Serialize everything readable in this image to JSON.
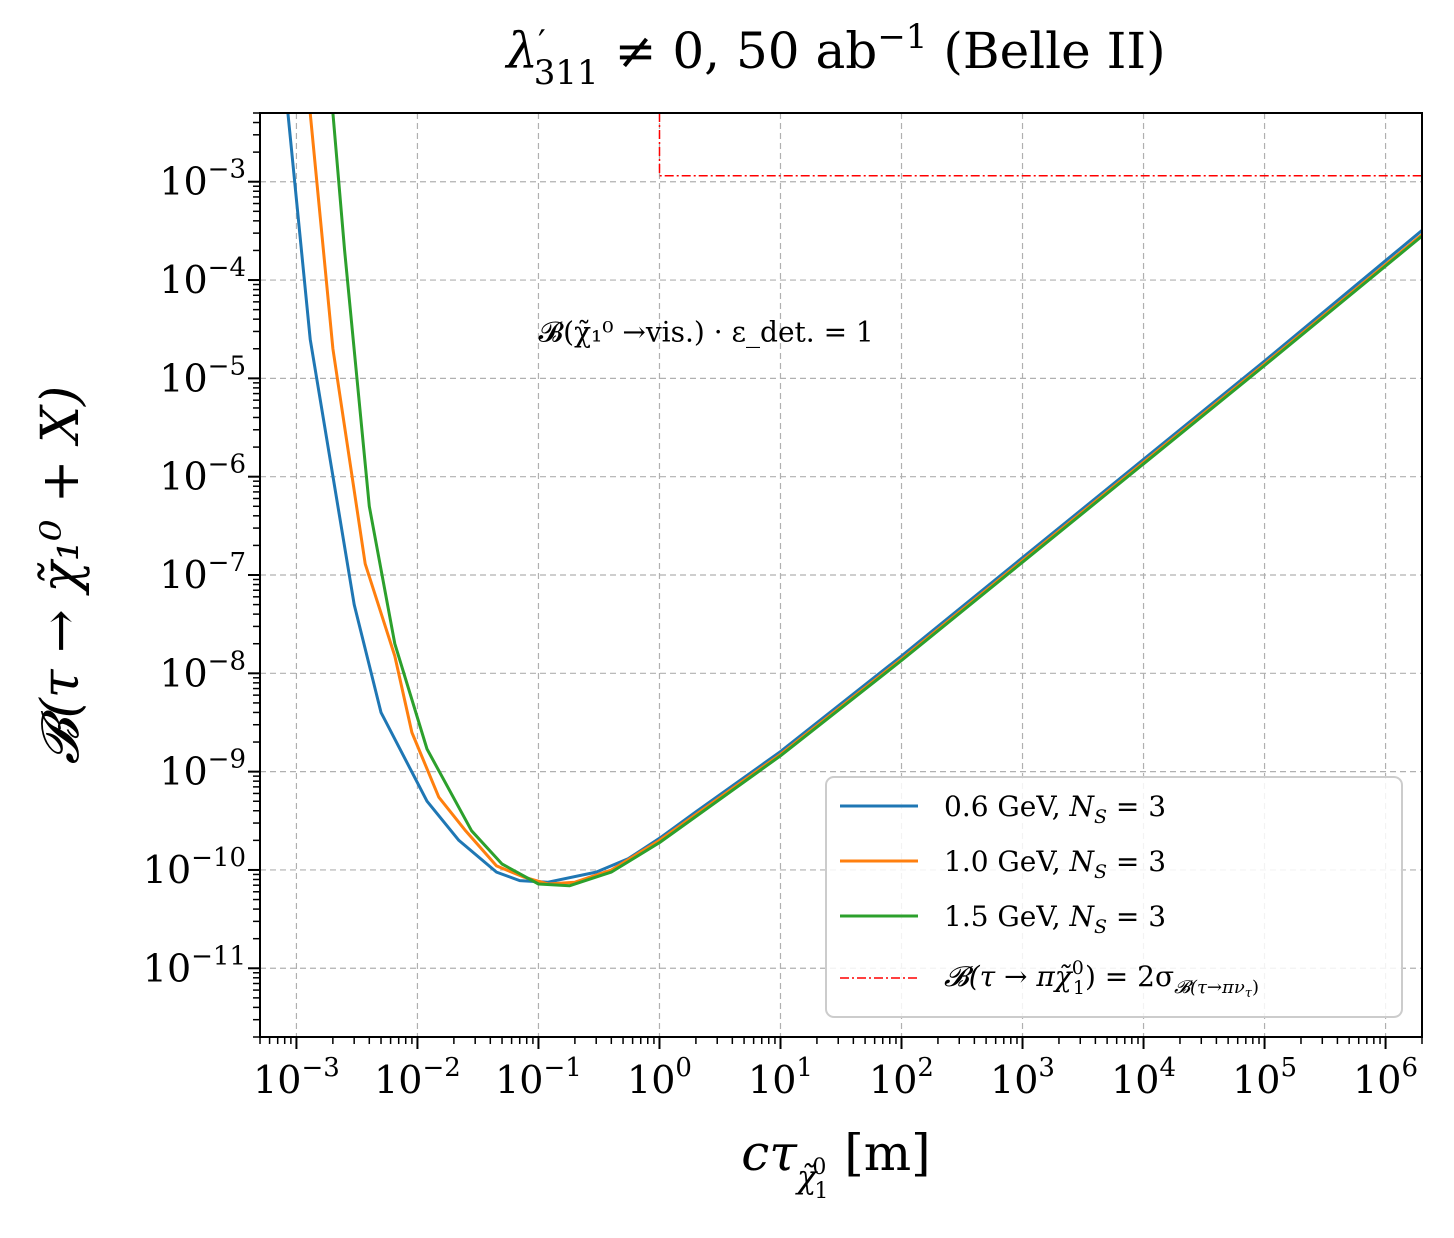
{
  "chart_data": {
    "type": "line",
    "title": "λ′₃₁₁ ≠ 0, 50 ab⁻¹ (Belle II)",
    "title_parts": {
      "lambda": "λ",
      "prime": "′",
      "sub": "311",
      "rest": " ≠ 0, 50 ab",
      "sup": "−1",
      "tail": " (Belle II)"
    },
    "xlabel": "cτ_χ̃₁⁰ [m]",
    "xlabel_parts": {
      "main": "cτ",
      "sub": "χ̃",
      "subsup": "0",
      "subsub": "1",
      "unit": " [m]"
    },
    "ylabel": "𝓑(τ → χ̃₁⁰ + X)",
    "x_scale": "log",
    "y_scale": "log",
    "xlim": [
      0.0005,
      2000000
    ],
    "ylim": [
      2e-12,
      0.005
    ],
    "grid": true,
    "x_ticks": [
      {
        "value": 0.001,
        "base": "10",
        "exp": "−3"
      },
      {
        "value": 0.01,
        "base": "10",
        "exp": "−2"
      },
      {
        "value": 0.1,
        "base": "10",
        "exp": "−1"
      },
      {
        "value": 1,
        "base": "10",
        "exp": "0"
      },
      {
        "value": 10,
        "base": "10",
        "exp": "1"
      },
      {
        "value": 100,
        "base": "10",
        "exp": "2"
      },
      {
        "value": 1000,
        "base": "10",
        "exp": "3"
      },
      {
        "value": 10000,
        "base": "10",
        "exp": "4"
      },
      {
        "value": 100000,
        "base": "10",
        "exp": "5"
      },
      {
        "value": 1000000,
        "base": "10",
        "exp": "6"
      }
    ],
    "y_ticks": [
      {
        "value": 0.001,
        "base": "10",
        "exp": "−3"
      },
      {
        "value": 0.0001,
        "base": "10",
        "exp": "−4"
      },
      {
        "value": 1e-05,
        "base": "10",
        "exp": "−5"
      },
      {
        "value": 1e-06,
        "base": "10",
        "exp": "−6"
      },
      {
        "value": 1e-07,
        "base": "10",
        "exp": "−7"
      },
      {
        "value": 1e-08,
        "base": "10",
        "exp": "−8"
      },
      {
        "value": 1e-09,
        "base": "10",
        "exp": "−9"
      },
      {
        "value": 1e-10,
        "base": "10",
        "exp": "−10"
      },
      {
        "value": 1e-11,
        "base": "10",
        "exp": "−11"
      }
    ],
    "annotation": {
      "text": "𝓑(χ̃₁⁰ →vis.) · ε_det. = 1",
      "x": 0.1,
      "y": 3e-05
    },
    "legend": {
      "placement": "lower-right"
    },
    "series": [
      {
        "name": "0.6 GeV, N_S = 3",
        "label_parts": {
          "main": "0.6 GeV, ",
          "var": "N",
          "sub": "S",
          "rest": " = 3"
        },
        "color": "#1f77b4",
        "style": "solid",
        "x": [
          0.00085,
          0.0013,
          0.003,
          0.005,
          0.012,
          0.022,
          0.045,
          0.07,
          0.12,
          0.3,
          0.55,
          1.0,
          2.0,
          10,
          100,
          1000,
          10000,
          100000,
          2000000
        ],
        "y": [
          0.005,
          2.5e-05,
          5e-08,
          4e-09,
          5e-10,
          2e-10,
          9.5e-11,
          7.8e-11,
          7.5e-11,
          9.5e-11,
          1.3e-10,
          2.1e-10,
          3.9e-10,
          1.6e-09,
          1.5e-08,
          1.5e-07,
          1.5e-06,
          1.5e-05,
          0.00032
        ]
      },
      {
        "name": "1.0 GeV, N_S = 3",
        "label_parts": {
          "main": "1.0 GeV, ",
          "var": "N",
          "sub": "S",
          "rest": " = 3"
        },
        "color": "#ff7f0e",
        "style": "solid",
        "x": [
          0.0013,
          0.002,
          0.0037,
          0.0065,
          0.009,
          0.015,
          0.025,
          0.045,
          0.075,
          0.12,
          0.2,
          0.4,
          1.0,
          10,
          100,
          1000,
          10000,
          100000,
          2000000
        ],
        "y": [
          0.005,
          2e-05,
          1.3e-07,
          1.5e-08,
          2.5e-09,
          5.5e-10,
          2.5e-10,
          1.1e-10,
          8.5e-11,
          7.2e-11,
          7.5e-11,
          1e-10,
          2e-10,
          1.5e-09,
          1.4e-08,
          1.4e-07,
          1.4e-06,
          1.4e-05,
          0.00029
        ]
      },
      {
        "name": "1.5 GeV, N_S = 3",
        "label_parts": {
          "main": "1.5 GeV, ",
          "var": "N",
          "sub": "S",
          "rest": " = 3"
        },
        "color": "#2ca02c",
        "style": "solid",
        "x": [
          0.002,
          0.0025,
          0.004,
          0.0065,
          0.012,
          0.028,
          0.05,
          0.1,
          0.18,
          0.4,
          1.0,
          10,
          100,
          1000,
          10000,
          100000,
          2000000
        ],
        "y": [
          0.005,
          0.0002,
          5e-07,
          2e-08,
          1.7e-09,
          2.5e-10,
          1.15e-10,
          7.2e-11,
          6.9e-11,
          9.5e-11,
          1.9e-10,
          1.45e-09,
          1.35e-08,
          1.35e-07,
          1.35e-06,
          1.35e-05,
          0.00028
        ]
      },
      {
        "name": "𝓑(τ → πχ̃₁⁰) = 2σ_𝓑(τ→πν_τ)",
        "label_parts": {
          "main": "𝓑(τ → πχ̃",
          "sup": "0",
          "sub": "1",
          "rest": ") = 2σ",
          "sigsub": "𝓑(τ→πν",
          "sigsubsub": "τ",
          "sigtail": ")"
        },
        "color": "#ff0000",
        "style": "dashdot",
        "x": [
          1,
          1,
          2000000
        ],
        "y": [
          0.005,
          0.00115,
          0.00115
        ]
      }
    ]
  }
}
